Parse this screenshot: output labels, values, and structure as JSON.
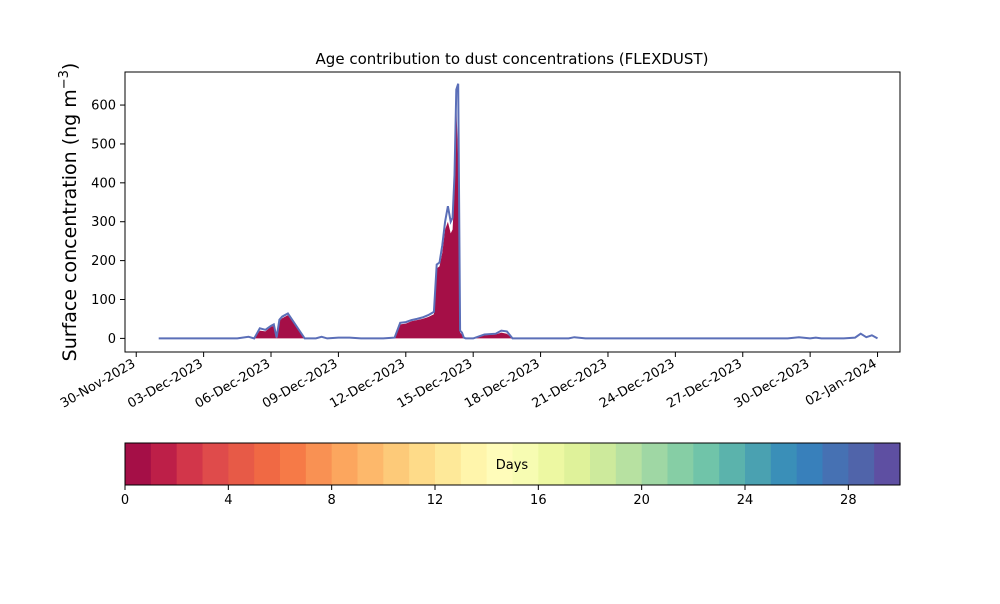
{
  "chart_data": {
    "type": "area",
    "title": "Age contribution to dust concentrations (FLEXDUST)",
    "ylabel_main": "Surface concentration (ng m",
    "ylabel_sup": "−3",
    "ylabel_close": ")",
    "ylim": [
      -35,
      685
    ],
    "yticks": [
      0,
      100,
      200,
      300,
      400,
      500,
      600
    ],
    "xlim": [
      "2023-11-29T12:00",
      "2024-01-03T00:00"
    ],
    "xticks": [
      "30-Nov-2023",
      "03-Dec-2023",
      "06-Dec-2023",
      "09-Dec-2023",
      "12-Dec-2023",
      "15-Dec-2023",
      "18-Dec-2023",
      "21-Dec-2023",
      "24-Dec-2023",
      "27-Dec-2023",
      "30-Dec-2023",
      "02-Jan-2024"
    ],
    "xtick_dates": [
      "2023-11-30",
      "2023-12-03",
      "2023-12-06",
      "2023-12-09",
      "2023-12-12",
      "2023-12-15",
      "2023-12-18",
      "2023-12-21",
      "2023-12-24",
      "2023-12-27",
      "2023-12-30",
      "2024-01-02"
    ],
    "series": [
      {
        "x": [
          "2023-12-01T00:00",
          "2023-12-04T12:00",
          "2023-12-05T00:00",
          "2023-12-05T06:00",
          "2023-12-05T12:00",
          "2023-12-05T18:00",
          "2023-12-06T00:00",
          "2023-12-06T03:00",
          "2023-12-06T06:00",
          "2023-12-06T09:00",
          "2023-12-06T12:00",
          "2023-12-06T18:00",
          "2023-12-07T12:00",
          "2023-12-08T00:00",
          "2023-12-08T06:00",
          "2023-12-08T12:00",
          "2023-12-09T00:00",
          "2023-12-09T12:00",
          "2023-12-10T00:00",
          "2023-12-11T00:00",
          "2023-12-11T06:00",
          "2023-12-11T12:00",
          "2023-12-11T18:00",
          "2023-12-12T00:00",
          "2023-12-12T06:00",
          "2023-12-12T12:00",
          "2023-12-12T18:00",
          "2023-12-13T00:00",
          "2023-12-13T06:00",
          "2023-12-13T09:00",
          "2023-12-13T12:00",
          "2023-12-13T15:00",
          "2023-12-13T18:00",
          "2023-12-13T21:00",
          "2023-12-14T00:00",
          "2023-12-14T02:00",
          "2023-12-14T04:00",
          "2023-12-14T06:00",
          "2023-12-14T08:00",
          "2023-12-14T10:00",
          "2023-12-14T12:00",
          "2023-12-14T14:00",
          "2023-12-14T16:00",
          "2023-12-14T18:00",
          "2023-12-14T20:00",
          "2023-12-15T00:00",
          "2023-12-15T12:00",
          "2023-12-16T00:00",
          "2023-12-16T06:00",
          "2023-12-16T12:00",
          "2023-12-16T18:00",
          "2023-12-17T00:00",
          "2023-12-17T12:00",
          "2023-12-18T00:00",
          "2023-12-19T06:00",
          "2023-12-19T12:00",
          "2023-12-20T00:00",
          "2023-12-25T00:00",
          "2023-12-29T00:00",
          "2023-12-29T12:00",
          "2023-12-30T00:00",
          "2023-12-30T06:00",
          "2023-12-30T12:00",
          "2023-12-31T00:00",
          "2023-12-31T12:00",
          "2024-01-01T00:00",
          "2024-01-01T06:00",
          "2024-01-01T12:00",
          "2024-01-01T18:00",
          "2024-01-02T00:00"
        ],
        "total": [
          0,
          0,
          4,
          0,
          26,
          22,
          32,
          36,
          2,
          48,
          56,
          64,
          0,
          0,
          4,
          0,
          2,
          2,
          0,
          0,
          1,
          2,
          40,
          42,
          47,
          50,
          54,
          60,
          68,
          190,
          195,
          240,
          300,
          340,
          300,
          310,
          420,
          640,
          655,
          20,
          15,
          2,
          0,
          0,
          0,
          0,
          10,
          12,
          20,
          18,
          0,
          0,
          0,
          0,
          0,
          3,
          0,
          0,
          0,
          3,
          0,
          2,
          0,
          0,
          0,
          2,
          12,
          3,
          8,
          0
        ],
        "age0": [
          0,
          0,
          0,
          0,
          20,
          18,
          30,
          32,
          0,
          45,
          52,
          60,
          0,
          0,
          0,
          0,
          0,
          0,
          0,
          0,
          0,
          0,
          36,
          38,
          44,
          47,
          50,
          55,
          62,
          180,
          185,
          220,
          280,
          300,
          270,
          280,
          380,
          600,
          460,
          15,
          10,
          0,
          0,
          0,
          0,
          0,
          8,
          10,
          15,
          12,
          0,
          0,
          0,
          0,
          0,
          0,
          0,
          0,
          0,
          0,
          0,
          0,
          0,
          0,
          0,
          0,
          0,
          0,
          0,
          0
        ]
      }
    ],
    "colorbar": {
      "label": "Days",
      "range": [
        0,
        30
      ],
      "ticks": [
        0,
        4,
        8,
        12,
        16,
        20,
        24,
        28
      ],
      "colors": [
        "#a50f47",
        "#bd1f48",
        "#d2364a",
        "#df4b4b",
        "#e75a47",
        "#f06944",
        "#f67a47",
        "#f99153",
        "#fca65e",
        "#fdb86b",
        "#fdca79",
        "#fedb89",
        "#fee999",
        "#fff5ab",
        "#fffcba",
        "#f7fcb2",
        "#edf8a2",
        "#dff29a",
        "#cdea9c",
        "#b7e1a1",
        "#9fd7a4",
        "#86cea5",
        "#70c4a9",
        "#5bb3ac",
        "#4aa1b1",
        "#3a8fb8",
        "#3880bb",
        "#4671b3",
        "#5064aa",
        "#5e4fa2"
      ]
    }
  }
}
